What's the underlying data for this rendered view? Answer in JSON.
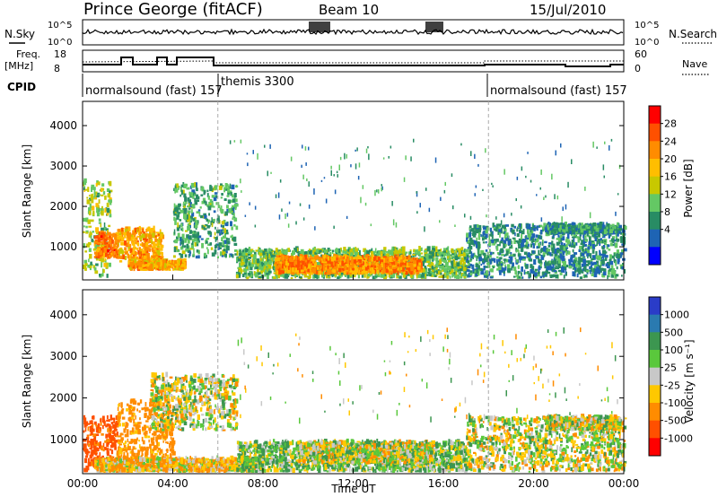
{
  "header": {
    "station": "Prince George (fitACF)",
    "beam": "Beam 10",
    "date": "15/Jul/2010"
  },
  "strip": {
    "nsky_label": "N.Sky",
    "nsky_ticks": [
      "10^5",
      "10^0"
    ],
    "nsearch_label": "N.Search",
    "nsearch_ticks": [
      "10^5",
      "10^0"
    ],
    "freq_label": "Freq.",
    "freq_unit": "[MHz]",
    "freq_ticks": [
      "18",
      "8"
    ],
    "nave_label": "Nave",
    "nave_ticks": [
      "60",
      "0"
    ],
    "cpid_label": "CPID",
    "cpid_segments": [
      "normalsound (fast) 157",
      "themis 3300",
      "normalsound (fast) 157"
    ]
  },
  "chart_data": [
    {
      "type": "heatmap",
      "title": "",
      "xlabel": "Time UT",
      "ylabel": "Slant Range [km]",
      "x_ticks": [
        "00:00",
        "04:00",
        "08:00",
        "12:00",
        "16:00",
        "20:00",
        "00:00"
      ],
      "y_ticks": [
        "1000",
        "2000",
        "3000",
        "4000"
      ],
      "xlim_hours": [
        0,
        24
      ],
      "ylim_km": [
        180,
        4600
      ],
      "colorbar": {
        "label": "Power [dB]",
        "ticks": [
          "28",
          "24",
          "20",
          "16",
          "12",
          "8",
          "4"
        ],
        "colors": [
          "#ff0000",
          "#ff5000",
          "#ff8c00",
          "#ffbe00",
          "#c8c800",
          "#64c864",
          "#288c64",
          "#1e64b4",
          "#0000ff"
        ]
      },
      "regions": [
        {
          "t0": 0.0,
          "t1": 1.2,
          "r0": 200,
          "r1": 2600,
          "value_db": 14
        },
        {
          "t0": 0.5,
          "t1": 1.5,
          "r0": 700,
          "r1": 1300,
          "value_db": 26
        },
        {
          "t0": 1.5,
          "t1": 3.5,
          "r0": 600,
          "r1": 1400,
          "value_db": 22
        },
        {
          "t0": 2.0,
          "t1": 4.5,
          "r0": 400,
          "r1": 600,
          "value_db": 22
        },
        {
          "t0": 4.0,
          "t1": 6.8,
          "r0": 700,
          "r1": 2500,
          "value_db": 10
        },
        {
          "t0": 6.8,
          "t1": 17.0,
          "r0": 200,
          "r1": 900,
          "value_db": 12
        },
        {
          "t0": 8.5,
          "t1": 15.0,
          "r0": 300,
          "r1": 700,
          "value_db": 24
        },
        {
          "t0": 17.0,
          "t1": 24.0,
          "r0": 200,
          "r1": 1500,
          "value_db": 8
        },
        {
          "t0": 20.5,
          "t1": 23.8,
          "r0": 1300,
          "r1": 1500,
          "value_db": 8
        }
      ]
    },
    {
      "type": "heatmap",
      "title": "",
      "xlabel": "Time UT",
      "ylabel": "Slant Range [km]",
      "x_ticks": [
        "00:00",
        "04:00",
        "08:00",
        "12:00",
        "16:00",
        "20:00",
        "00:00"
      ],
      "y_ticks": [
        "1000",
        "2000",
        "3000",
        "4000"
      ],
      "xlim_hours": [
        0,
        24
      ],
      "ylim_km": [
        180,
        4600
      ],
      "colorbar": {
        "label": "Velocity [m s⁻¹]",
        "ticks": [
          "1000",
          "500",
          "100",
          "25",
          "-25",
          "-100",
          "-500",
          "-1000"
        ],
        "colors": [
          "#2a3cc8",
          "#2a7ab0",
          "#3c9650",
          "#5ac83c",
          "#c8c8c8",
          "#ffc800",
          "#ff8c00",
          "#ff5000",
          "#ff0000"
        ]
      },
      "regions": [
        {
          "t0": 0.0,
          "t1": 1.5,
          "r0": 200,
          "r1": 1500,
          "value_ms": -600
        },
        {
          "t0": 1.5,
          "t1": 4.0,
          "r0": 400,
          "r1": 1900,
          "value_ms": -200
        },
        {
          "t0": 3.0,
          "t1": 6.8,
          "r0": 1200,
          "r1": 2500,
          "value_ms": 0
        },
        {
          "t0": 0.5,
          "t1": 8.0,
          "r0": 200,
          "r1": 500,
          "value_ms": -80
        },
        {
          "t0": 6.8,
          "t1": 17.0,
          "r0": 200,
          "r1": 900,
          "value_ms": 60
        },
        {
          "t0": 9.5,
          "t1": 15.5,
          "r0": 400,
          "r1": 900,
          "value_ms": 0
        },
        {
          "t0": 17.0,
          "t1": 24.0,
          "r0": 200,
          "r1": 1500,
          "value_ms": 0
        },
        {
          "t0": 20.5,
          "t1": 23.8,
          "r0": 1200,
          "r1": 1500,
          "value_ms": 0
        }
      ]
    }
  ]
}
